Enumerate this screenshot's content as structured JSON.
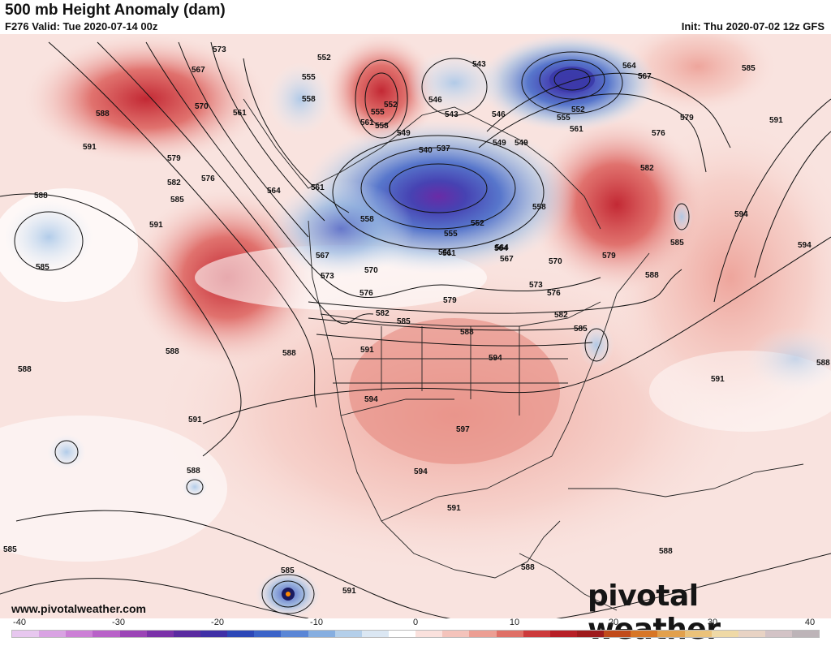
{
  "header": {
    "title": "500 mb Height Anomaly (dam)",
    "valid": "F276 Valid: Tue 2020-07-14 00z",
    "init": "Init: Thu 2020-07-02 12z GFS"
  },
  "footer": {
    "website": "www.pivotalweather.com",
    "logo_text": "pivotal weather"
  },
  "colorbar": {
    "ticks": [
      "-40",
      "-30",
      "-20",
      "-10",
      "0",
      "10",
      "20",
      "30",
      "40"
    ],
    "colors": [
      "#e7c7ef",
      "#d9a3e3",
      "#cc7fd6",
      "#b861c8",
      "#9b44b6",
      "#7a31a8",
      "#5a2aa0",
      "#3f2fa6",
      "#2c47b7",
      "#3b63c8",
      "#5a86d6",
      "#86aee0",
      "#b4cfea",
      "#dbe7f3",
      "#ffffff",
      "#fae1dd",
      "#f4c3bb",
      "#ec9e93",
      "#df6f66",
      "#cc3a3b",
      "#b71f26",
      "#9e1a1c",
      "#c14a1a",
      "#d77627",
      "#e2a04c",
      "#ebc27a",
      "#efd9a6",
      "#e8d3c4",
      "#d3c3c6",
      "#bdb4b8"
    ]
  },
  "contour_labels": [
    "552",
    "555",
    "558",
    "561",
    "564",
    "567",
    "570",
    "573",
    "576",
    "579",
    "582",
    "585",
    "588",
    "591",
    "594",
    "597",
    "543",
    "546",
    "549",
    "537",
    "540"
  ],
  "map_labels": [
    {
      "text": "573"
    },
    {
      "text": "567"
    },
    {
      "text": "552"
    },
    {
      "text": "555"
    },
    {
      "text": "558"
    },
    {
      "text": "561"
    },
    {
      "text": "570"
    },
    {
      "text": "564"
    },
    {
      "text": "561"
    },
    {
      "text": "558"
    },
    {
      "text": "555"
    },
    {
      "text": "552"
    },
    {
      "text": "549"
    },
    {
      "text": "546"
    },
    {
      "text": "543"
    },
    {
      "text": "543"
    },
    {
      "text": "546"
    },
    {
      "text": "549"
    },
    {
      "text": "552"
    },
    {
      "text": "555"
    },
    {
      "text": "561"
    },
    {
      "text": "564"
    },
    {
      "text": "567"
    },
    {
      "text": "576"
    },
    {
      "text": "579"
    },
    {
      "text": "582"
    },
    {
      "text": "585"
    },
    {
      "text": "591"
    },
    {
      "text": "588"
    },
    {
      "text": "591"
    },
    {
      "text": "579"
    },
    {
      "text": "582"
    },
    {
      "text": "585"
    },
    {
      "text": "576"
    },
    {
      "text": "588"
    },
    {
      "text": "585"
    },
    {
      "text": "591"
    },
    {
      "text": "558"
    },
    {
      "text": "555"
    },
    {
      "text": "552"
    },
    {
      "text": "561"
    },
    {
      "text": "564"
    },
    {
      "text": "567"
    },
    {
      "text": "570"
    },
    {
      "text": "573"
    },
    {
      "text": "576"
    },
    {
      "text": "579"
    },
    {
      "text": "582"
    },
    {
      "text": "585"
    },
    {
      "text": "588"
    },
    {
      "text": "591"
    },
    {
      "text": "594"
    },
    {
      "text": "597"
    },
    {
      "text": "594"
    },
    {
      "text": "594"
    },
    {
      "text": "591"
    },
    {
      "text": "588"
    },
    {
      "text": "588"
    },
    {
      "text": "591"
    },
    {
      "text": "594"
    },
    {
      "text": "594"
    },
    {
      "text": "588"
    },
    {
      "text": "585"
    },
    {
      "text": "588"
    },
    {
      "text": "585"
    },
    {
      "text": "588"
    },
    {
      "text": "591"
    },
    {
      "text": "588"
    },
    {
      "text": "585"
    },
    {
      "text": "540"
    },
    {
      "text": "537"
    },
    {
      "text": "549"
    },
    {
      "text": "558"
    },
    {
      "text": "561"
    },
    {
      "text": "564"
    },
    {
      "text": "567"
    },
    {
      "text": "570"
    },
    {
      "text": "573"
    },
    {
      "text": "576"
    },
    {
      "text": "579"
    },
    {
      "text": "582"
    },
    {
      "text": "585"
    },
    {
      "text": "588"
    },
    {
      "text": "591"
    },
    {
      "text": "561"
    },
    {
      "text": "588"
    }
  ]
}
